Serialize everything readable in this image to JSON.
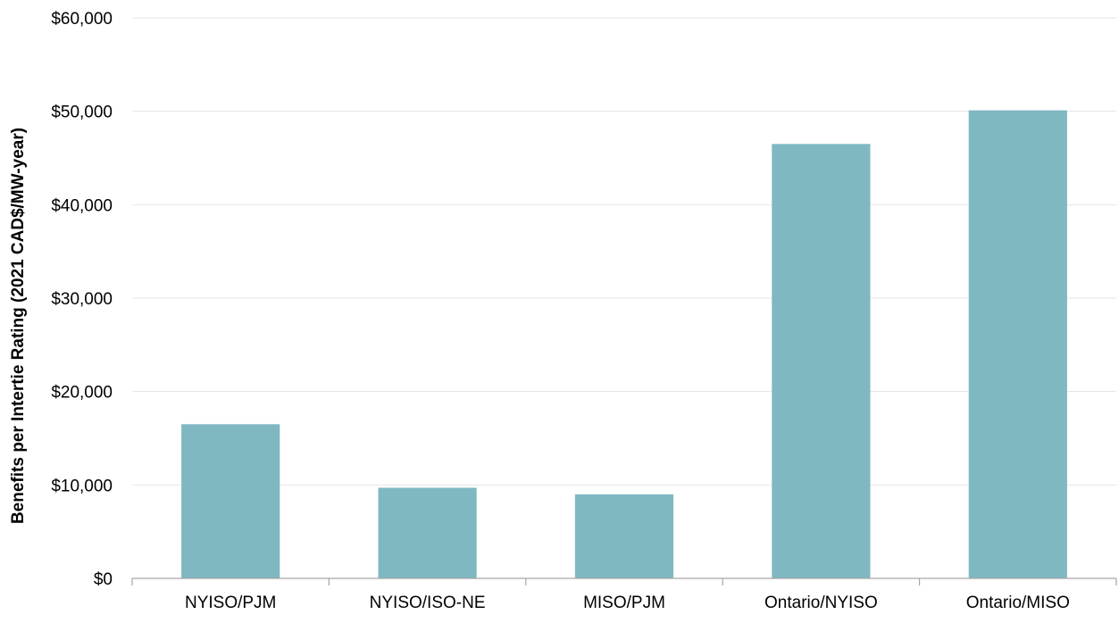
{
  "chart_data": {
    "type": "bar",
    "title": "",
    "xlabel": "",
    "ylabel": "Benefits per Intertie Rating (2021 CAD$/MW-year)",
    "categories": [
      "NYISO/PJM",
      "NYISO/ISO-NE",
      "MISO/PJM",
      "Ontario/NYISO",
      "Ontario/MISO"
    ],
    "series": [
      {
        "values": [
          16500,
          9700,
          9000,
          46500,
          50100
        ]
      }
    ],
    "ylim": [
      0,
      60000
    ],
    "yticks": [
      0,
      10000,
      20000,
      30000,
      40000,
      50000,
      60000
    ],
    "ytick_labels": [
      "$0",
      "$10,000",
      "$20,000",
      "$30,000",
      "$40,000",
      "$50,000",
      "$60,000"
    ],
    "grid": true,
    "legend": "none",
    "colors": {
      "bar": "#7fb8c1",
      "gridline": "#e6e6e6",
      "axis": "#a6a6a6"
    }
  }
}
